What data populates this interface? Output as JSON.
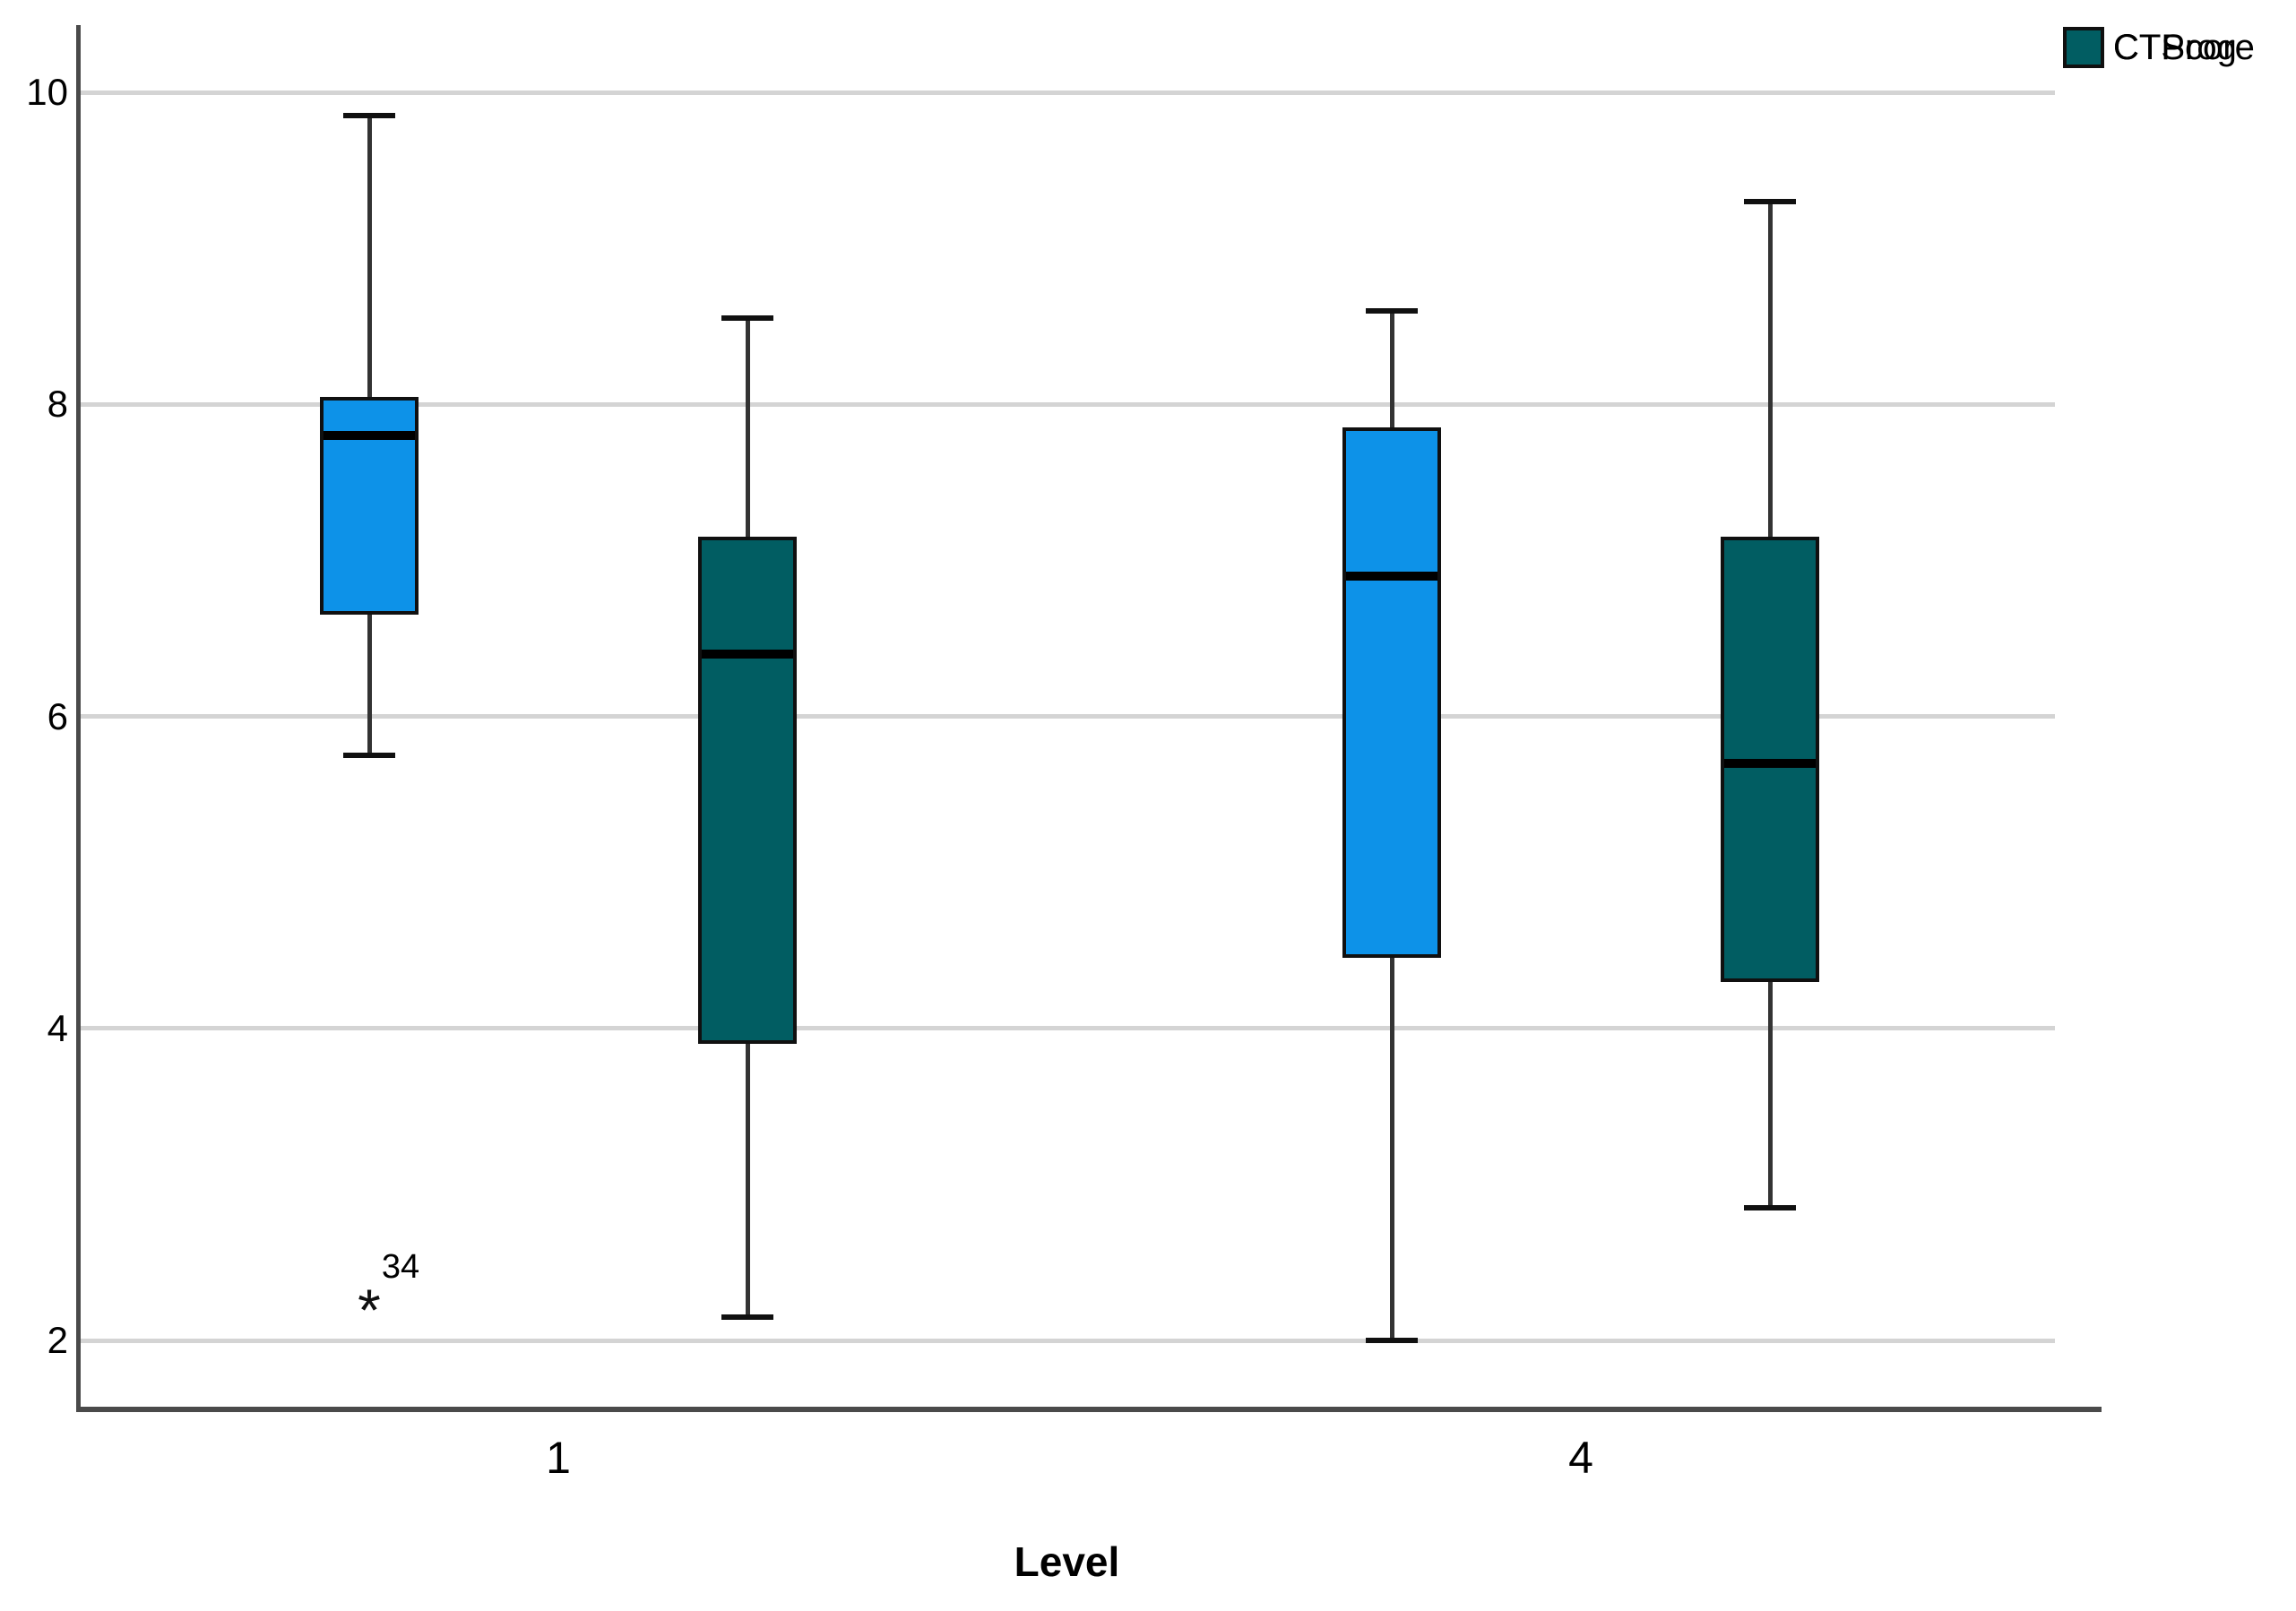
{
  "chart_data": {
    "type": "boxplot",
    "title": "",
    "xlabel": "Level",
    "ylabel": "",
    "ylim": [
      2,
      10
    ],
    "yticks": [
      2,
      4,
      6,
      8,
      10
    ],
    "categories": [
      "1",
      "4"
    ],
    "grid": true,
    "legend_position": "top-right",
    "outlier_marker": "*",
    "colors": {
      "gridline": "#d4d4d4",
      "axis": "#4a4a4a",
      "box_border": "#101010",
      "median": "#000000",
      "whisker": "#333333"
    },
    "series": [
      {
        "name": "CTScore",
        "color": "#0d92e8",
        "boxes": [
          {
            "category": "1",
            "whisker_low": 5.75,
            "q1": 6.65,
            "median": 7.8,
            "q3": 8.05,
            "whisker_high": 9.85,
            "outliers": [
              {
                "value": 2.25,
                "label": "34"
              }
            ]
          },
          {
            "category": "4",
            "whisker_low": 2.0,
            "q1": 4.45,
            "median": 6.9,
            "q3": 7.85,
            "whisker_high": 8.6,
            "outliers": []
          }
        ]
      },
      {
        "name": "CTProg",
        "color": "#015d62",
        "boxes": [
          {
            "category": "1",
            "whisker_low": 2.15,
            "q1": 3.9,
            "median": 6.4,
            "q3": 7.15,
            "whisker_high": 8.55,
            "outliers": []
          },
          {
            "category": "4",
            "whisker_low": 2.85,
            "q1": 4.3,
            "median": 5.7,
            "q3": 7.15,
            "whisker_high": 9.3,
            "outliers": []
          }
        ]
      }
    ]
  },
  "legend": {
    "items": [
      {
        "label": "CTScore"
      },
      {
        "label": "CTProg"
      }
    ]
  },
  "x_axis": {
    "title": "Level",
    "tick_labels": [
      "1",
      "4"
    ]
  },
  "y_axis": {
    "tick_labels": [
      "2",
      "4",
      "6",
      "8",
      "10"
    ]
  }
}
